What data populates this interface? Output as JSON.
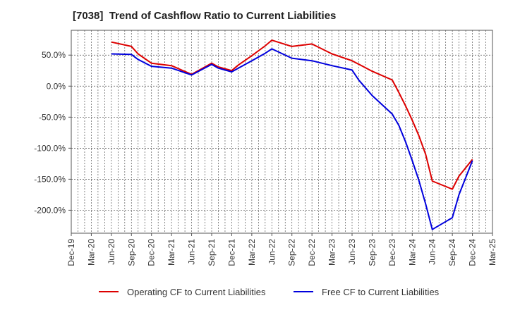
{
  "chart_data": {
    "type": "line",
    "title": "[7038]  Trend of Cashflow Ratio to Current Liabilities",
    "xlabel": "",
    "ylabel": "",
    "x_tick_labels": [
      "Dec-19",
      "Mar-20",
      "Jun-20",
      "Sep-20",
      "Dec-20",
      "Mar-21",
      "Jun-21",
      "Sep-21",
      "Dec-21",
      "Mar-22",
      "Jun-22",
      "Sep-22",
      "Dec-22",
      "Mar-23",
      "Jun-23",
      "Sep-23",
      "Dec-23",
      "Mar-24",
      "Jun-24",
      "Sep-24",
      "Dec-24",
      "Mar-25"
    ],
    "y_tick_labels": [
      "50.0%",
      "0.0%",
      "-50.0%",
      "-100.0%",
      "-150.0%",
      "-200.0%"
    ],
    "y_tick_values": [
      50,
      0,
      -50,
      -100,
      -150,
      -200
    ],
    "ylim": [
      -237,
      90
    ],
    "x_range_quarters": [
      0,
      21
    ],
    "grid": true,
    "legend_position": "bottom",
    "series": [
      {
        "name": "Operating CF to Current Liabilities",
        "color": "#dd0000",
        "points": [
          [
            2.0,
            71
          ],
          [
            3.0,
            64
          ],
          [
            3.33,
            52
          ],
          [
            4.0,
            37
          ],
          [
            5.0,
            33
          ],
          [
            6.0,
            19
          ],
          [
            7.0,
            37
          ],
          [
            7.33,
            31
          ],
          [
            8.0,
            25
          ],
          [
            8.33,
            34
          ],
          [
            9.0,
            49
          ],
          [
            9.67,
            65
          ],
          [
            10.0,
            74
          ],
          [
            11.0,
            64
          ],
          [
            12.0,
            68
          ],
          [
            13.0,
            52
          ],
          [
            14.0,
            41
          ],
          [
            15.0,
            24
          ],
          [
            16.0,
            10
          ],
          [
            16.33,
            -10
          ],
          [
            16.67,
            -32
          ],
          [
            17.0,
            -55
          ],
          [
            17.33,
            -80
          ],
          [
            17.67,
            -110
          ],
          [
            18.0,
            -153
          ],
          [
            19.0,
            -166
          ],
          [
            19.33,
            -145
          ],
          [
            20.0,
            -118
          ]
        ]
      },
      {
        "name": "Free CF to Current Liabilities",
        "color": "#0000dd",
        "points": [
          [
            2.0,
            52
          ],
          [
            3.0,
            51
          ],
          [
            3.33,
            43
          ],
          [
            4.0,
            32
          ],
          [
            5.0,
            29
          ],
          [
            6.0,
            18
          ],
          [
            7.0,
            35
          ],
          [
            7.33,
            29
          ],
          [
            8.0,
            23
          ],
          [
            8.33,
            29
          ],
          [
            9.0,
            41
          ],
          [
            9.67,
            53
          ],
          [
            10.0,
            60
          ],
          [
            11.0,
            45
          ],
          [
            12.0,
            41
          ],
          [
            13.0,
            33
          ],
          [
            14.0,
            26
          ],
          [
            14.33,
            10
          ],
          [
            15.0,
            -15
          ],
          [
            16.0,
            -45
          ],
          [
            16.33,
            -63
          ],
          [
            16.67,
            -90
          ],
          [
            17.0,
            -120
          ],
          [
            17.33,
            -152
          ],
          [
            17.67,
            -190
          ],
          [
            18.0,
            -231
          ],
          [
            19.0,
            -212
          ],
          [
            19.33,
            -175
          ],
          [
            20.0,
            -120
          ]
        ]
      }
    ]
  }
}
